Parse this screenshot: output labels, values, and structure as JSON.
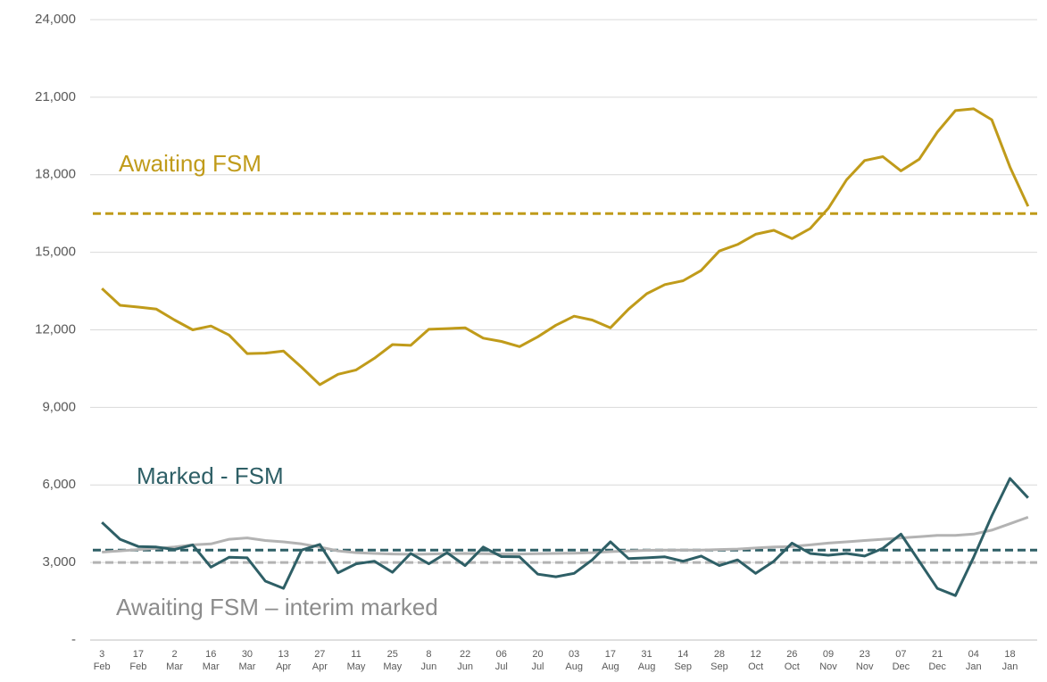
{
  "chart_data": {
    "type": "line",
    "categories": [
      "3 Feb",
      null,
      "17 Feb",
      null,
      "2 Mar",
      null,
      "16 Mar",
      null,
      "30 Mar",
      null,
      "13 Apr",
      null,
      "27 Apr",
      null,
      "11 May",
      null,
      "25 May",
      null,
      "8 Jun",
      null,
      "22 Jun",
      null,
      "06 Jul",
      null,
      "20 Jul",
      null,
      "03 Aug",
      null,
      "17 Aug",
      null,
      "31 Aug",
      null,
      "14 Sep",
      null,
      "28 Sep",
      null,
      "12 Oct",
      null,
      "26 Oct",
      null,
      "09 Nov",
      null,
      "23 Nov",
      null,
      "07 Dec",
      null,
      "21 Dec",
      null,
      "04 Jan",
      null,
      "18 Jan",
      null
    ],
    "series": [
      {
        "name": "Awaiting FSM",
        "color": "#c09b1a",
        "values": [
          13600,
          12950,
          12880,
          12800,
          12380,
          12000,
          12150,
          11800,
          11080,
          11100,
          11180,
          10550,
          9880,
          10280,
          10450,
          10900,
          11430,
          11400,
          12020,
          12050,
          12080,
          11680,
          11550,
          11350,
          11730,
          12180,
          12530,
          12380,
          12080,
          12800,
          13400,
          13750,
          13900,
          14300,
          15050,
          15300,
          15700,
          15850,
          15530,
          15920,
          16700,
          17800,
          18550,
          18700,
          18150,
          18600,
          19650,
          20480,
          20550,
          20130,
          18300,
          16780
        ]
      },
      {
        "name": "Marked - FSM",
        "color": "#2e5f66",
        "values": [
          4550,
          3900,
          3620,
          3600,
          3500,
          3680,
          2820,
          3200,
          3180,
          2280,
          2000,
          3480,
          3700,
          2600,
          2950,
          3050,
          2620,
          3350,
          2950,
          3380,
          2880,
          3600,
          3230,
          3220,
          2550,
          2450,
          2580,
          3100,
          3800,
          3150,
          3180,
          3220,
          3050,
          3250,
          2880,
          3100,
          2580,
          3050,
          3750,
          3350,
          3280,
          3350,
          3250,
          3550,
          4100,
          3050,
          2000,
          1720,
          3200,
          4800,
          6250,
          5500
        ]
      },
      {
        "name": "Awaiting FSM – interim marked",
        "color": "#b3b3b3",
        "values": [
          3400,
          3450,
          3500,
          3550,
          3600,
          3680,
          3720,
          3900,
          3950,
          3850,
          3800,
          3720,
          3600,
          3450,
          3380,
          3350,
          3330,
          3320,
          3330,
          3340,
          3350,
          3340,
          3330,
          3330,
          3340,
          3350,
          3360,
          3380,
          3420,
          3450,
          3470,
          3480,
          3480,
          3480,
          3500,
          3520,
          3560,
          3600,
          3620,
          3680,
          3750,
          3800,
          3850,
          3900,
          3950,
          4000,
          4050,
          4050,
          4100,
          4250,
          4500,
          4750
        ]
      }
    ],
    "reference_lines": [
      {
        "value": 16500,
        "color": "#c09b1a"
      },
      {
        "value": 3480,
        "color": "#2e5f66"
      },
      {
        "value": 3000,
        "color": "#b3b3b3"
      }
    ],
    "ylim": [
      0,
      24000
    ],
    "yticks": [
      {
        "value": 0,
        "label": "-"
      },
      {
        "value": 3000,
        "label": "3,000"
      },
      {
        "value": 6000,
        "label": "6,000"
      },
      {
        "value": 9000,
        "label": "9,000"
      },
      {
        "value": 12000,
        "label": "12,000"
      },
      {
        "value": 15000,
        "label": "15,000"
      },
      {
        "value": 18000,
        "label": "18,000"
      },
      {
        "value": 21000,
        "label": "21,000"
      },
      {
        "value": 24000,
        "label": "24,000"
      }
    ],
    "grid": true
  }
}
